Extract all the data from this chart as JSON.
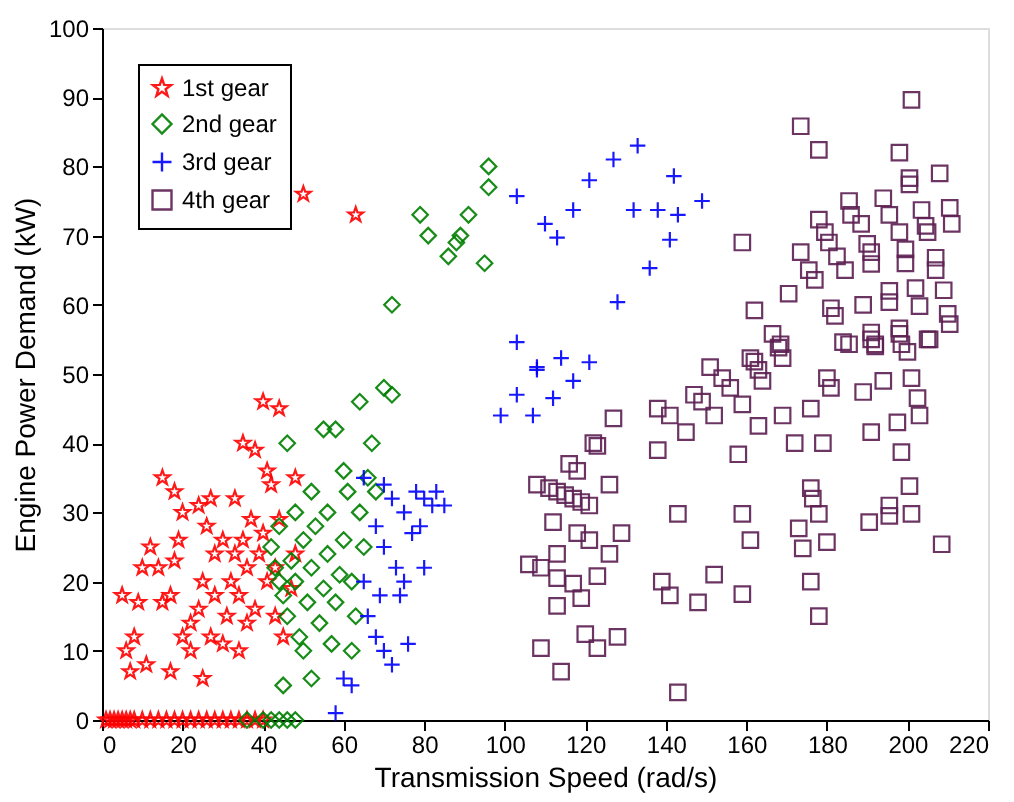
{
  "chart_data": {
    "type": "scatter",
    "xlabel": "Transmission Speed (rad/s)",
    "ylabel": "Engine Power Demand (kW)",
    "xlim": [
      0,
      220
    ],
    "ylim": [
      0,
      100
    ],
    "xticks": [
      0,
      20,
      40,
      60,
      80,
      100,
      120,
      140,
      160,
      180,
      200,
      220
    ],
    "yticks": [
      0,
      10,
      20,
      30,
      40,
      50,
      60,
      70,
      80,
      90,
      100
    ],
    "grid": false,
    "legend": "top left",
    "series": [
      {
        "name": "1st gear",
        "color": "#ff0000",
        "marker": "star",
        "x": [
          1,
          2,
          3,
          4,
          5,
          6,
          7,
          8,
          10,
          12,
          14,
          16,
          18,
          20,
          22,
          24,
          26,
          28,
          30,
          32,
          34,
          36,
          38,
          40,
          50,
          63,
          40,
          44,
          35,
          38,
          42,
          48,
          44,
          20,
          15,
          18,
          24,
          33,
          27,
          5,
          10,
          12,
          14,
          17,
          9,
          6,
          7,
          8,
          11,
          15,
          18,
          20,
          22,
          24,
          25,
          27,
          28,
          28,
          30,
          31,
          32,
          33,
          34,
          35,
          36,
          36,
          37,
          38,
          39,
          40,
          41,
          43,
          43,
          45,
          48,
          17,
          25,
          47,
          22,
          30,
          34,
          41,
          26,
          19
        ],
        "values": [
          0,
          0,
          0,
          0,
          0,
          0,
          0,
          0,
          0,
          0,
          0,
          0,
          0,
          0,
          0,
          0,
          0,
          0,
          0,
          0,
          0,
          0,
          0,
          0,
          76,
          73,
          46,
          45,
          40,
          39,
          34,
          35,
          29,
          30,
          35,
          33,
          31,
          32,
          32,
          18,
          22,
          25,
          22,
          18,
          17,
          10,
          7,
          12,
          8,
          17,
          23,
          12,
          14,
          16,
          20,
          12,
          18,
          24,
          11,
          15,
          20,
          24,
          18,
          26,
          14,
          22,
          29,
          16,
          24,
          27,
          20,
          22,
          15,
          12,
          24,
          7,
          6,
          19,
          10,
          26,
          10,
          36,
          28,
          26
        ]
      },
      {
        "name": "2nd gear",
        "color": "#008000",
        "marker": "diamond",
        "x": [
          36,
          40,
          42,
          44,
          46,
          48,
          42,
          43,
          44,
          45,
          46,
          47,
          48,
          49,
          50,
          50,
          51,
          52,
          53,
          54,
          55,
          56,
          56,
          57,
          58,
          59,
          60,
          61,
          62,
          63,
          64,
          65,
          66,
          67,
          68,
          70,
          72,
          72,
          58,
          64,
          79,
          81,
          91,
          88,
          86,
          95,
          96,
          96,
          89,
          46,
          52,
          60,
          55,
          48,
          44,
          62,
          45,
          52
        ],
        "values": [
          0,
          0,
          0,
          0,
          0,
          0,
          25,
          22,
          20,
          18,
          15,
          23,
          20,
          12,
          10,
          26,
          17,
          22,
          28,
          14,
          19,
          30,
          24,
          11,
          17,
          21,
          26,
          33,
          20,
          15,
          30,
          25,
          35,
          40,
          33,
          48,
          47,
          60,
          42,
          46,
          73,
          70,
          73,
          69,
          67,
          66,
          80,
          77,
          70,
          40,
          33,
          36,
          42,
          30,
          28,
          10,
          5,
          6
        ]
      },
      {
        "name": "3rd gear",
        "color": "#0000ff",
        "marker": "cross",
        "x": [
          103,
          110,
          113,
          117,
          121,
          127,
          133,
          132,
          138,
          142,
          143,
          141,
          136,
          128,
          103,
          108,
          114,
          121,
          149,
          108,
          117,
          103,
          112,
          99,
          107,
          65,
          70,
          72,
          75,
          78,
          80,
          82,
          85,
          68,
          70,
          73,
          75,
          77,
          80,
          65,
          66,
          68,
          70,
          72,
          60,
          62,
          58,
          74,
          76,
          69,
          83,
          79
        ],
        "values": [
          75.7,
          71.7,
          69.7,
          73.7,
          78,
          81,
          83,
          73.7,
          73.7,
          78.6,
          73,
          69.4,
          65.3,
          60.4,
          54.6,
          51,
          52.3,
          51.7,
          75,
          50.6,
          49,
          47,
          46.5,
          44,
          44,
          35,
          34,
          32,
          30,
          33,
          32,
          31,
          31,
          28,
          25,
          22,
          20,
          27,
          22,
          20,
          15,
          12,
          10,
          8,
          6,
          5,
          1,
          18,
          11,
          18,
          33,
          28
        ]
      },
      {
        "name": "4th gear",
        "color": "#5c1f52",
        "marker": "square",
        "x": [
          108,
          111,
          113,
          115,
          117,
          119,
          121,
          122,
          123,
          116,
          118,
          126,
          127,
          106,
          109,
          113,
          117,
          113,
          112,
          118,
          121,
          126,
          129,
          123,
          119,
          113,
          120,
          123,
          128,
          109,
          114,
          143,
          138,
          141,
          145,
          138,
          147,
          149,
          152,
          151,
          154,
          156,
          159,
          158,
          162,
          163,
          164,
          163,
          169,
          168,
          169,
          172,
          176,
          179,
          180,
          181,
          184,
          189,
          191,
          194,
          191,
          192,
          198,
          200,
          197.5,
          198.5,
          201,
          202.5,
          203,
          205.5,
          176,
          176.5,
          178,
          173,
          174,
          180,
          159,
          161,
          143,
          152,
          159,
          148,
          139,
          141,
          176,
          178,
          190.5,
          195.5,
          195.5,
          201,
          200.5,
          208.5,
          201,
          173.5,
          178,
          198,
          208,
          200.5,
          200.5,
          185.5,
          194,
          186,
          195.5,
          203.5,
          210.5,
          211,
          178,
          179.5,
          180.5,
          188.5,
          190,
          191,
          198,
          204.5,
          205,
          159,
          173.5,
          175.5,
          177,
          182.5,
          184.5,
          191,
          199.5,
          199.5,
          207,
          207,
          170.5,
          162,
          181,
          182,
          189,
          195.5,
          195.5,
          202,
          203,
          209,
          210,
          210.5,
          166.5,
          161,
          168.5,
          185.5,
          191,
          192,
          198,
          198.5,
          205
        ],
        "values": [
          34,
          33.5,
          33,
          32.5,
          32,
          31.5,
          31,
          40,
          39.6,
          37,
          36,
          34,
          43.6,
          22.5,
          22,
          20.5,
          19.7,
          24,
          28.6,
          27,
          26,
          24,
          27,
          20.8,
          17.6,
          16.5,
          12.4,
          10.4,
          12,
          10.4,
          7,
          4,
          45,
          44,
          41.6,
          39,
          47,
          46,
          44,
          51,
          49.4,
          48,
          45.6,
          38.4,
          51.8,
          50.6,
          49,
          42.5,
          44,
          53.8,
          52.3,
          40,
          45,
          40,
          49.4,
          48,
          54.6,
          47.4,
          41.6,
          49,
          55,
          54,
          55.8,
          53.2,
          43,
          38.7,
          49.4,
          46.5,
          44,
          55,
          33.5,
          32,
          29.8,
          27.7,
          24.8,
          25.7,
          29.8,
          26,
          29.8,
          21,
          18.2,
          17,
          20,
          18,
          20,
          15,
          28.6,
          29.5,
          31,
          29.8,
          33.8,
          25.4,
          89.6,
          85.8,
          82.4,
          82,
          79,
          78.3,
          77.4,
          75,
          75.4,
          73,
          73,
          73.7,
          74,
          71.7,
          72.3,
          70.5,
          69,
          71.7,
          68.8,
          67.6,
          70.5,
          71.4,
          70.5,
          69,
          67.6,
          65,
          63.6,
          67,
          65,
          65.9,
          68,
          66,
          66.8,
          65,
          61.6,
          59.2,
          59.5,
          58.4,
          60,
          62,
          60.4,
          62.4,
          59.8,
          62.1,
          58.7,
          57.2,
          55.8,
          52.3,
          54.3,
          54.3,
          56,
          54.3,
          56.6,
          54.3,
          55
        ]
      }
    ]
  }
}
